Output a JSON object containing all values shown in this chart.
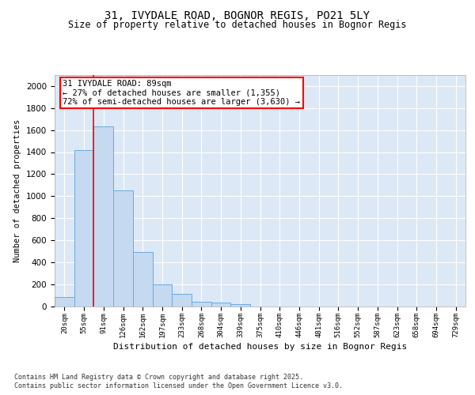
{
  "title1": "31, IVYDALE ROAD, BOGNOR REGIS, PO21 5LY",
  "title2": "Size of property relative to detached houses in Bognor Regis",
  "xlabel": "Distribution of detached houses by size in Bognor Regis",
  "ylabel": "Number of detached properties",
  "footnote1": "Contains HM Land Registry data © Crown copyright and database right 2025.",
  "footnote2": "Contains public sector information licensed under the Open Government Licence v3.0.",
  "bar_values": [
    80,
    1420,
    1630,
    1050,
    490,
    200,
    110,
    40,
    30,
    20,
    0,
    0,
    0,
    0,
    0,
    0,
    0,
    0,
    0,
    0,
    0
  ],
  "bar_labels": [
    "20sqm",
    "55sqm",
    "91sqm",
    "126sqm",
    "162sqm",
    "197sqm",
    "233sqm",
    "268sqm",
    "304sqm",
    "339sqm",
    "375sqm",
    "410sqm",
    "446sqm",
    "481sqm",
    "516sqm",
    "552sqm",
    "587sqm",
    "623sqm",
    "658sqm",
    "694sqm",
    "729sqm"
  ],
  "bar_color": "#c5d9f0",
  "bar_edge_color": "#6aaae0",
  "property_line_x": 1.5,
  "annotation_text": "31 IVYDALE ROAD: 89sqm\n← 27% of detached houses are smaller (1,355)\n72% of semi-detached houses are larger (3,630) →",
  "annotation_box_color": "#cc0000",
  "ylim": [
    0,
    2100
  ],
  "yticks": [
    0,
    200,
    400,
    600,
    800,
    1000,
    1200,
    1400,
    1600,
    1800,
    2000
  ],
  "background_color": "#dce8f5",
  "grid_color": "#ffffff",
  "fig_background": "#ffffff",
  "title1_fontsize": 10,
  "title2_fontsize": 8.5,
  "xlabel_fontsize": 8,
  "ylabel_fontsize": 7.5,
  "ytick_fontsize": 7.5,
  "xtick_fontsize": 6.5,
  "footnote_fontsize": 6
}
